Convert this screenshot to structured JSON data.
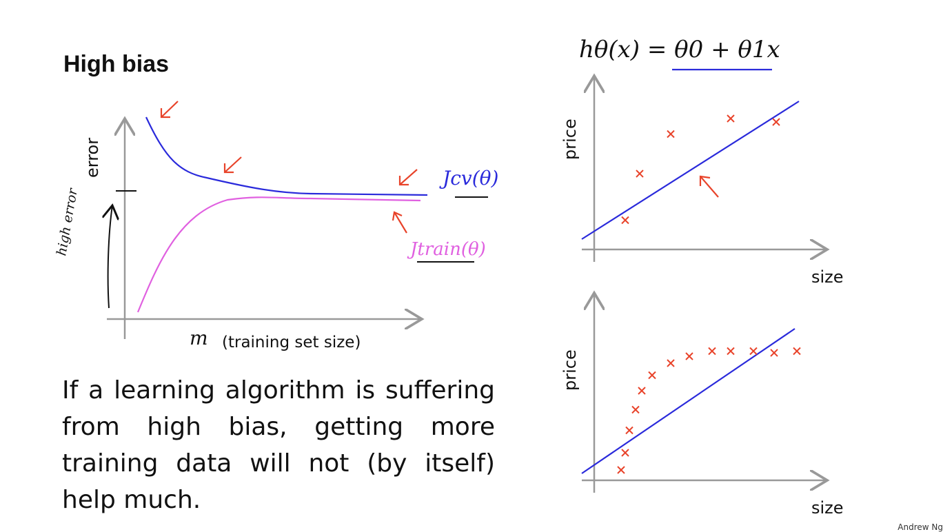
{
  "slide": {
    "title": "High bias",
    "body": "If a learning algorithm is suffering from high bias, getting more training data will not (by itself) help much.",
    "credit": "Andrew Ng"
  },
  "learning_curve": {
    "ylabel": "error",
    "xlabel_symbol": "m",
    "xlabel": "(training set size)",
    "cv_label": "Jcv(θ)",
    "train_label": "Jtrain(θ)",
    "annotation": "high error",
    "colors": {
      "cv": "#2a2adb",
      "train": "#e060e0",
      "annotation": "#e8432a"
    }
  },
  "hypothesis": "hθ(x) = θ0 + θ1x",
  "chart_data": [
    {
      "type": "scatter",
      "xlabel": "size",
      "ylabel": "price",
      "points": [
        [
          1.5,
          1.7
        ],
        [
          2.2,
          4.4
        ],
        [
          3.7,
          6.7
        ],
        [
          6.6,
          7.6
        ],
        [
          8.8,
          7.4
        ]
      ],
      "fit_line": [
        [
          -0.6,
          0.6
        ],
        [
          9.9,
          8.6
        ]
      ]
    },
    {
      "type": "scatter",
      "xlabel": "size",
      "ylabel": "price",
      "points": [
        [
          1.3,
          0.6
        ],
        [
          1.5,
          1.6
        ],
        [
          1.7,
          2.9
        ],
        [
          2.0,
          4.1
        ],
        [
          2.3,
          5.2
        ],
        [
          2.8,
          6.1
        ],
        [
          3.7,
          6.8
        ],
        [
          4.6,
          7.2
        ],
        [
          5.7,
          7.5
        ],
        [
          6.6,
          7.5
        ],
        [
          7.7,
          7.5
        ],
        [
          8.7,
          7.4
        ],
        [
          9.8,
          7.5
        ]
      ],
      "fit_line": [
        [
          -0.6,
          0.4
        ],
        [
          9.7,
          8.8
        ]
      ]
    }
  ]
}
